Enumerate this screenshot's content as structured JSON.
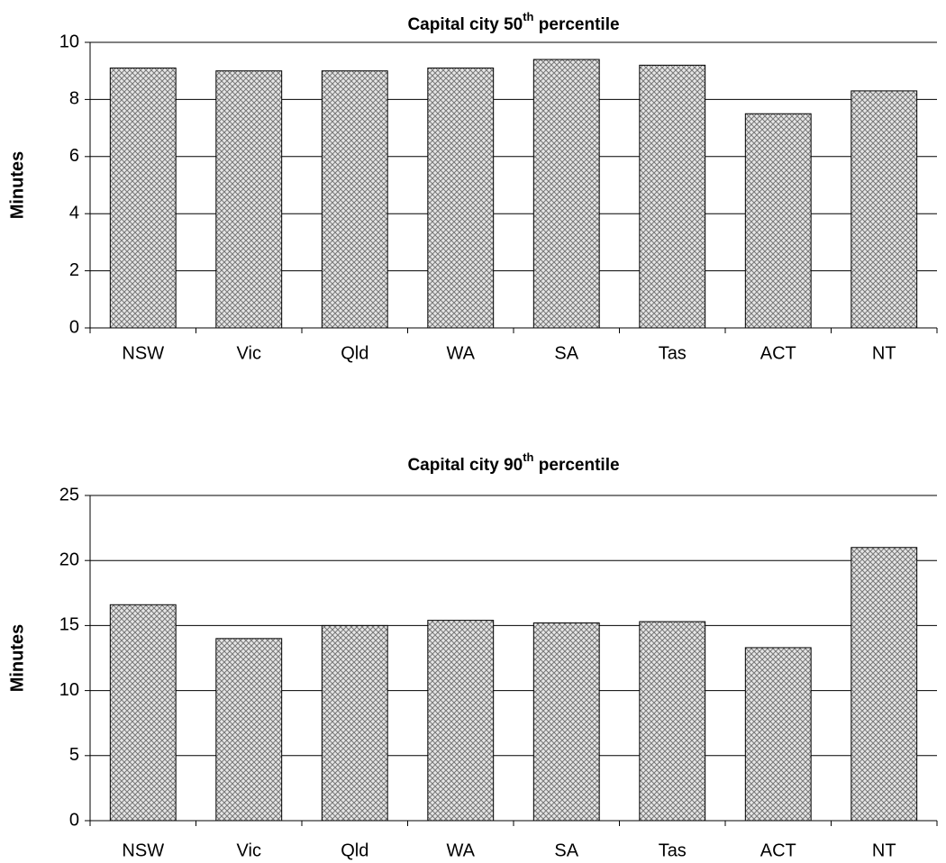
{
  "chart_data": [
    {
      "type": "bar",
      "title": [
        "Capital city 50",
        "th",
        " percentile"
      ],
      "y_label": "Minutes",
      "categories": [
        "NSW",
        "Vic",
        "Qld",
        "WA",
        "SA",
        "Tas",
        "ACT",
        "NT"
      ],
      "values": [
        9.1,
        9.0,
        9.0,
        9.1,
        9.4,
        9.2,
        7.5,
        8.3
      ],
      "color": "#c8c8c8",
      "ylim": [
        0,
        10
      ],
      "yticks": [
        0,
        2,
        4,
        6,
        8,
        10
      ],
      "grid": true
    },
    {
      "type": "bar",
      "title": [
        "Capital city 90",
        "th",
        " percentile"
      ],
      "y_label": "Minutes",
      "categories": [
        "NSW",
        "Vic",
        "Qld",
        "WA",
        "SA",
        "Tas",
        "ACT",
        "NT"
      ],
      "values": [
        16.6,
        14.0,
        15.0,
        15.4,
        15.2,
        15.3,
        13.3,
        21.0
      ],
      "color": "#c8c8c8",
      "ylim": [
        0,
        25
      ],
      "yticks": [
        0,
        5,
        10,
        15,
        20,
        25
      ],
      "grid": true
    }
  ]
}
